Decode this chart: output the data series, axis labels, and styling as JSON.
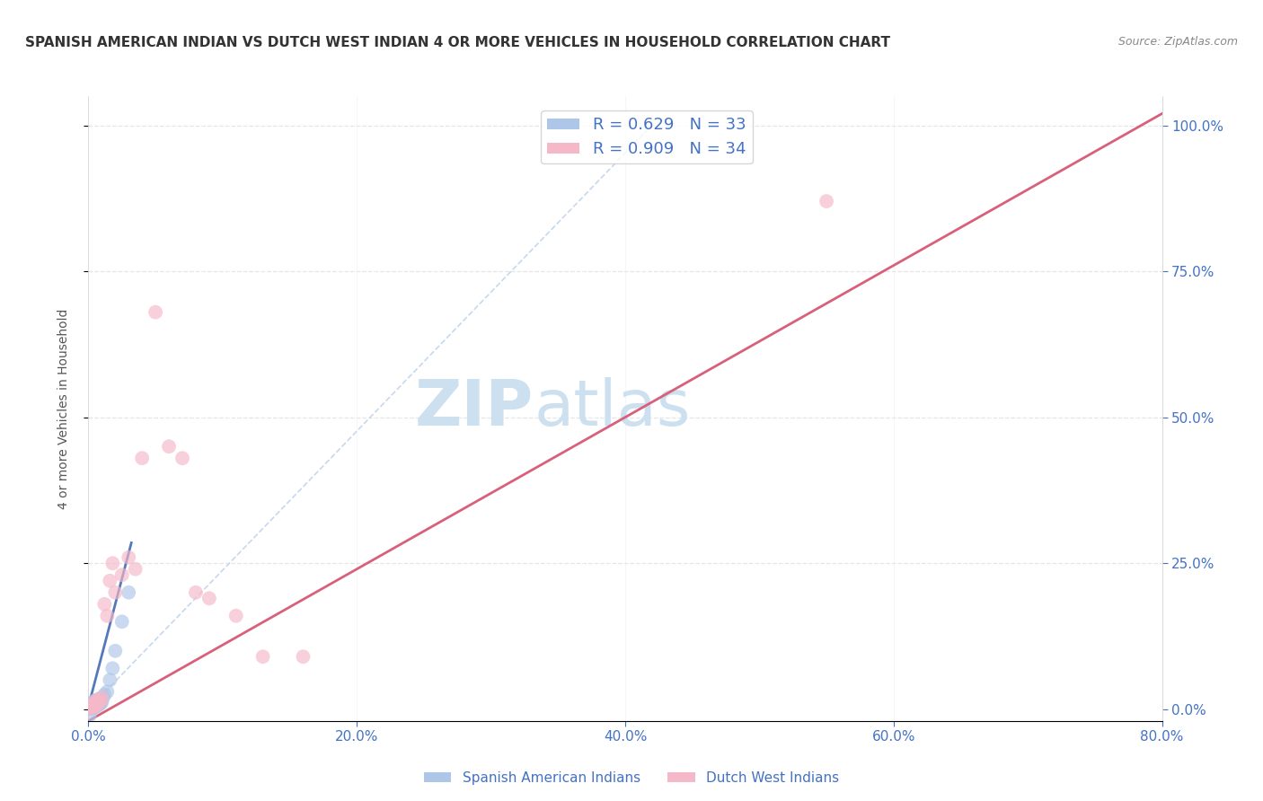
{
  "title": "SPANISH AMERICAN INDIAN VS DUTCH WEST INDIAN 4 OR MORE VEHICLES IN HOUSEHOLD CORRELATION CHART",
  "source": "Source: ZipAtlas.com",
  "ylabel_label": "4 or more Vehicles in Household",
  "legend_label1": "R = 0.629   N = 33",
  "legend_label2": "R = 0.909   N = 34",
  "legend_color1": "#aec6e8",
  "legend_color2": "#f5b8c8",
  "scatter_color1": "#aec6e8",
  "scatter_color2": "#f5b8c8",
  "line_color1": "#5578bb",
  "line_color2": "#d9607a",
  "diag_color": "#b8cfe8",
  "watermark_zip": "ZIP",
  "watermark_atlas": "atlas",
  "xlim": [
    0.0,
    0.8
  ],
  "ylim": [
    -0.02,
    1.05
  ],
  "blue_scatter_x": [
    0.001,
    0.001,
    0.002,
    0.002,
    0.002,
    0.002,
    0.003,
    0.003,
    0.003,
    0.003,
    0.004,
    0.004,
    0.004,
    0.005,
    0.005,
    0.005,
    0.006,
    0.006,
    0.007,
    0.007,
    0.008,
    0.008,
    0.009,
    0.01,
    0.011,
    0.012,
    0.014,
    0.016,
    0.018,
    0.02,
    0.025,
    0.03,
    0.001
  ],
  "blue_scatter_y": [
    0.002,
    0.003,
    0.001,
    0.004,
    0.005,
    0.007,
    0.002,
    0.005,
    0.008,
    0.012,
    0.003,
    0.006,
    0.01,
    0.004,
    0.008,
    0.015,
    0.005,
    0.01,
    0.007,
    0.015,
    0.008,
    0.018,
    0.01,
    0.012,
    0.02,
    0.025,
    0.03,
    0.05,
    0.07,
    0.1,
    0.15,
    0.2,
    -0.01
  ],
  "pink_scatter_x": [
    0.001,
    0.001,
    0.002,
    0.002,
    0.003,
    0.003,
    0.004,
    0.004,
    0.005,
    0.005,
    0.006,
    0.006,
    0.007,
    0.008,
    0.009,
    0.01,
    0.012,
    0.014,
    0.016,
    0.018,
    0.02,
    0.025,
    0.03,
    0.035,
    0.04,
    0.05,
    0.06,
    0.07,
    0.08,
    0.09,
    0.11,
    0.13,
    0.16,
    0.55
  ],
  "pink_scatter_y": [
    0.002,
    0.004,
    0.003,
    0.006,
    0.004,
    0.008,
    0.005,
    0.01,
    0.006,
    0.012,
    0.007,
    0.015,
    0.01,
    0.012,
    0.015,
    0.02,
    0.18,
    0.16,
    0.22,
    0.25,
    0.2,
    0.23,
    0.26,
    0.24,
    0.43,
    0.68,
    0.45,
    0.43,
    0.2,
    0.19,
    0.16,
    0.09,
    0.09,
    0.87
  ],
  "blue_line_x": [
    0.0,
    0.032
  ],
  "blue_line_y": [
    0.005,
    0.285
  ],
  "pink_line_x": [
    0.0,
    0.8
  ],
  "pink_line_y": [
    -0.02,
    1.02
  ],
  "diag_line_x": [
    0.0,
    0.42
  ],
  "diag_line_y": [
    0.0,
    1.0
  ],
  "grid_color": "#e0e0e0",
  "bg_color": "#ffffff",
  "title_fontsize": 11,
  "watermark_fontsize_zip": 52,
  "watermark_fontsize_atlas": 52,
  "watermark_color": "#cce0f0",
  "legend_text_color": "#4472c4",
  "bottom_legend1": "Spanish American Indians",
  "bottom_legend2": "Dutch West Indians"
}
